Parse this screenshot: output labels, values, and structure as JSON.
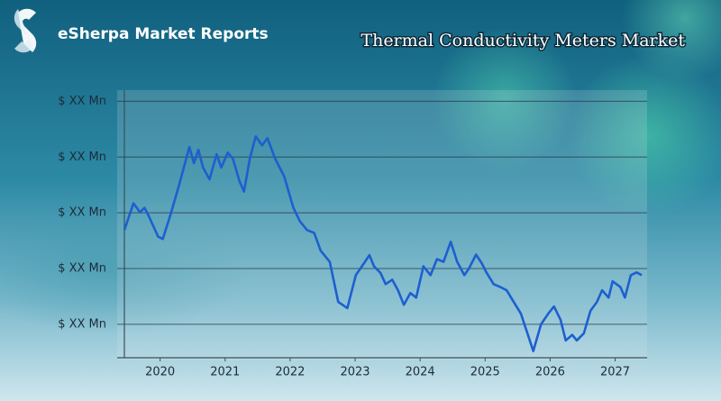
{
  "header": {
    "brand": "eSherpa Market Reports"
  },
  "chart_data": {
    "type": "line",
    "title": "Thermal Conductivity Meters Market",
    "color": "#1d5fcf",
    "grid": true,
    "x": [
      2019.45,
      2019.59,
      2019.69,
      2019.76,
      2019.83,
      2019.97,
      2020.04,
      2020.15,
      2020.29,
      2020.45,
      2020.52,
      2020.59,
      2020.66,
      2020.76,
      2020.87,
      2020.94,
      2021.04,
      2021.12,
      2021.22,
      2021.29,
      2021.38,
      2021.47,
      2021.57,
      2021.65,
      2021.77,
      2021.91,
      2022.05,
      2022.15,
      2022.26,
      2022.37,
      2022.47,
      2022.61,
      2022.74,
      2022.88,
      2023.01,
      2023.15,
      2023.22,
      2023.29,
      2023.39,
      2023.47,
      2023.57,
      2023.66,
      2023.75,
      2023.85,
      2023.94,
      2024.05,
      2024.16,
      2024.26,
      2024.36,
      2024.47,
      2024.57,
      2024.68,
      2024.75,
      2024.86,
      2024.95,
      2025.02,
      2025.13,
      2025.23,
      2025.33,
      2025.44,
      2025.55,
      2025.65,
      2025.74,
      2025.86,
      2025.97,
      2026.06,
      2026.16,
      2026.24,
      2026.34,
      2026.41,
      2026.52,
      2026.62,
      2026.72,
      2026.8,
      2026.9,
      2026.96,
      2027.08,
      2027.15,
      2027.24,
      2027.33,
      2027.41
    ],
    "values": [
      2.69,
      3.17,
      3.01,
      3.09,
      2.93,
      2.57,
      2.53,
      2.93,
      3.49,
      4.18,
      3.89,
      4.13,
      3.81,
      3.6,
      4.05,
      3.81,
      4.08,
      3.97,
      3.57,
      3.38,
      3.97,
      4.37,
      4.21,
      4.34,
      3.97,
      3.65,
      3.09,
      2.85,
      2.69,
      2.64,
      2.32,
      2.12,
      1.4,
      1.29,
      1.88,
      2.12,
      2.24,
      2.04,
      1.92,
      1.72,
      1.8,
      1.61,
      1.35,
      1.56,
      1.48,
      2.04,
      1.88,
      2.17,
      2.12,
      2.48,
      2.12,
      1.88,
      2.0,
      2.25,
      2.09,
      1.93,
      1.72,
      1.67,
      1.61,
      1.4,
      1.19,
      0.84,
      0.52,
      1.0,
      1.19,
      1.32,
      1.08,
      0.71,
      0.81,
      0.71,
      0.84,
      1.24,
      1.4,
      1.61,
      1.48,
      1.77,
      1.67,
      1.48,
      1.88,
      1.93,
      1.88
    ],
    "xlim": [
      2019.45,
      2027.45
    ],
    "xticks": [
      2020,
      2021,
      2022,
      2023,
      2024,
      2025,
      2026,
      2027
    ],
    "ylim": [
      0.4,
      5.2
    ],
    "yticks": [
      {
        "value": 1,
        "label": "$ XX Mn"
      },
      {
        "value": 2,
        "label": "$ XX Mn"
      },
      {
        "value": 3,
        "label": "$ XX Mn"
      },
      {
        "value": 4,
        "label": "$ XX Mn"
      },
      {
        "value": 5,
        "label": "$ XX Mn"
      }
    ]
  }
}
